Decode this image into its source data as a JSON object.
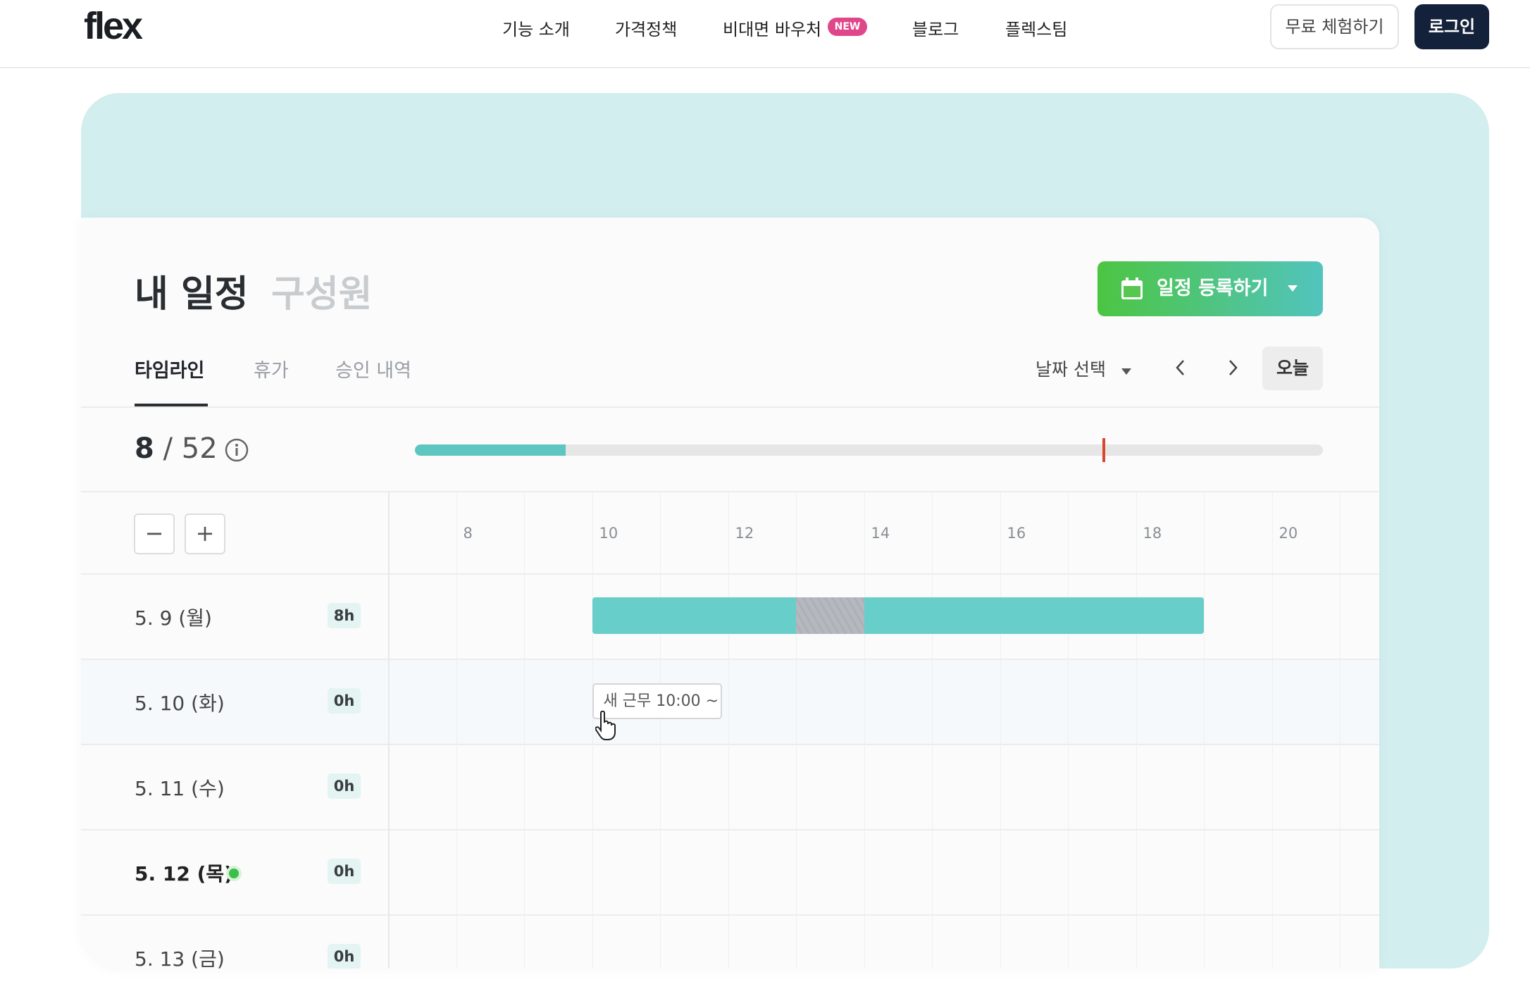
{
  "nav": {
    "logo": "flex",
    "items": [
      "기능 소개",
      "가격정책",
      "비대면 바우처",
      "블로그",
      "플렉스팀"
    ],
    "new_badge": "NEW",
    "trial": "무료 체험하기",
    "login": "로그인"
  },
  "colors": {
    "teal_bg": "#d2eeee",
    "bar": "#67ceca",
    "login_bg": "#14213a",
    "new_badge": "#e0478a",
    "today_dot": "#3bbf4a",
    "marker": "#d8472f"
  },
  "card": {
    "title": "내 일정",
    "title_alt": "구성원",
    "add_button": "일정 등록하기",
    "tabs": [
      "타임라인",
      "휴가",
      "승인 내역"
    ],
    "active_tab": "타임라인",
    "date_select": "날짜 선택",
    "today": "오늘",
    "count_current": "8",
    "count_total": "/ 52",
    "progress_fraction": 0.166,
    "marker_fraction": 0.757,
    "zoom_out": "−",
    "zoom_in": "+",
    "hours": [
      "8",
      "10",
      "12",
      "14",
      "16",
      "18",
      "20"
    ],
    "rows": [
      {
        "day": "5. 9 (월)",
        "hours": "8h",
        "bold": false
      },
      {
        "day": "5. 10 (화)",
        "hours": "0h",
        "bold": false
      },
      {
        "day": "5. 11 (수)",
        "hours": "0h",
        "bold": false
      },
      {
        "day": "5. 12 (목)",
        "hours": "0h",
        "bold": true,
        "today": true
      },
      {
        "day": "5. 13 (금)",
        "hours": "0h",
        "bold": false
      }
    ],
    "work_block": {
      "start": 10,
      "end": 19,
      "break_start": 13,
      "break_end": 14
    },
    "new_work_popup": "새 근무 10:00 ~"
  }
}
